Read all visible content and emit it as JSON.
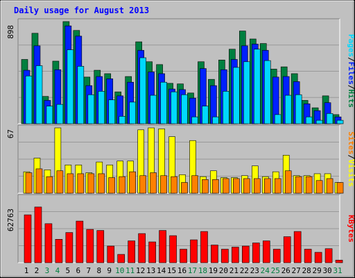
{
  "title": "Daily usage for August 2013",
  "colors": {
    "background": "#c0c0c0",
    "plot_bg": "#c0c0c0",
    "hits": "#007f3f",
    "files": "#0020ff",
    "pages": "#00d8ff",
    "visits": "#ffff00",
    "sites": "#ff8000",
    "kbytes": "#ff0000",
    "title": "#0000ff",
    "weekend": "#007f3f",
    "weekday": "#000000"
  },
  "chart_data": [
    {
      "type": "bar",
      "panel": "hits-files-pages",
      "ymax_label": "898",
      "ylim": [
        0,
        898
      ],
      "grid": true,
      "legend": {
        "placement": "right",
        "labels": [
          "Pages",
          "Files",
          "Hits"
        ],
        "separator": "/"
      },
      "categories": [
        "1",
        "2",
        "3",
        "4",
        "5",
        "6",
        "7",
        "8",
        "9",
        "10",
        "11",
        "12",
        "13",
        "14",
        "15",
        "16",
        "17",
        "18",
        "19",
        "20",
        "21",
        "22",
        "23",
        "24",
        "25",
        "26",
        "27",
        "28",
        "29",
        "30",
        "31"
      ],
      "series": [
        {
          "name": "Hits",
          "values": [
            565,
            795,
            240,
            550,
            898,
            820,
            410,
            470,
            440,
            280,
            415,
            720,
            545,
            520,
            355,
            350,
            270,
            545,
            390,
            560,
            655,
            815,
            745,
            705,
            480,
            500,
            440,
            205,
            140,
            245,
            80
          ]
        },
        {
          "name": "Files",
          "values": [
            470,
            685,
            205,
            475,
            860,
            770,
            335,
            415,
            395,
            245,
            365,
            645,
            455,
            440,
            305,
            300,
            225,
            485,
            335,
            475,
            565,
            685,
            700,
            645,
            410,
            415,
            370,
            175,
            115,
            185,
            60
          ]
        },
        {
          "name": "Pages",
          "values": [
            420,
            510,
            155,
            170,
            650,
            505,
            255,
            285,
            210,
            65,
            190,
            580,
            250,
            365,
            280,
            255,
            60,
            155,
            60,
            285,
            495,
            545,
            655,
            555,
            80,
            250,
            255,
            60,
            30,
            90,
            30
          ]
        }
      ]
    },
    {
      "type": "bar",
      "panel": "visits-sites",
      "ymax_label": "67",
      "ylim": [
        0,
        67
      ],
      "grid": true,
      "legend": {
        "placement": "right",
        "labels": [
          "Sites",
          "Visits"
        ],
        "separator": "/"
      },
      "categories": [
        "1",
        "2",
        "3",
        "4",
        "5",
        "6",
        "7",
        "8",
        "9",
        "10",
        "11",
        "12",
        "13",
        "14",
        "15",
        "16",
        "17",
        "18",
        "19",
        "20",
        "21",
        "22",
        "23",
        "24",
        "25",
        "26",
        "27",
        "28",
        "29",
        "30",
        "31"
      ],
      "series": [
        {
          "name": "Visits",
          "values": [
            22,
            36,
            24,
            67,
            29,
            29,
            21,
            32,
            29,
            33,
            33,
            65,
            67,
            66,
            58,
            19,
            54,
            17,
            23,
            16,
            16,
            18,
            28,
            17,
            22,
            39,
            18,
            18,
            20,
            20,
            11
          ]
        },
        {
          "name": "Sites",
          "values": [
            21,
            25,
            17,
            23,
            20,
            20,
            20,
            20,
            16,
            17,
            22,
            18,
            21,
            18,
            17,
            11,
            18,
            14,
            14,
            15,
            15,
            15,
            15,
            15,
            15,
            23,
            17,
            17,
            13,
            15,
            11
          ]
        }
      ]
    },
    {
      "type": "bar",
      "panel": "kbytes",
      "ymax_label": "62763",
      "ylim": [
        0,
        62763
      ],
      "grid": true,
      "legend": {
        "placement": "right",
        "labels": [
          "KBytes"
        ],
        "separator": ""
      },
      "categories": [
        "1",
        "2",
        "3",
        "4",
        "5",
        "6",
        "7",
        "8",
        "9",
        "10",
        "11",
        "12",
        "13",
        "14",
        "15",
        "16",
        "17",
        "18",
        "19",
        "20",
        "21",
        "22",
        "23",
        "24",
        "25",
        "26",
        "27",
        "28",
        "29",
        "30",
        "31"
      ],
      "series": [
        {
          "name": "KBytes",
          "values": [
            46000,
            53500,
            37500,
            22500,
            29000,
            40000,
            32000,
            31000,
            16000,
            8000,
            21000,
            28000,
            20000,
            31000,
            26000,
            13000,
            22000,
            30000,
            17000,
            13000,
            15000,
            16000,
            19000,
            21000,
            13000,
            25000,
            30000,
            13000,
            10000,
            13500,
            2500
          ]
        }
      ]
    }
  ],
  "x_axis": {
    "labels": [
      "1",
      "2",
      "3",
      "4",
      "5",
      "6",
      "7",
      "8",
      "9",
      "10",
      "11",
      "12",
      "13",
      "14",
      "15",
      "16",
      "17",
      "18",
      "19",
      "20",
      "21",
      "22",
      "23",
      "24",
      "25",
      "26",
      "27",
      "28",
      "29",
      "30",
      "31"
    ],
    "weekend": [
      "3",
      "4",
      "10",
      "11",
      "17",
      "18",
      "24",
      "25",
      "31"
    ]
  }
}
